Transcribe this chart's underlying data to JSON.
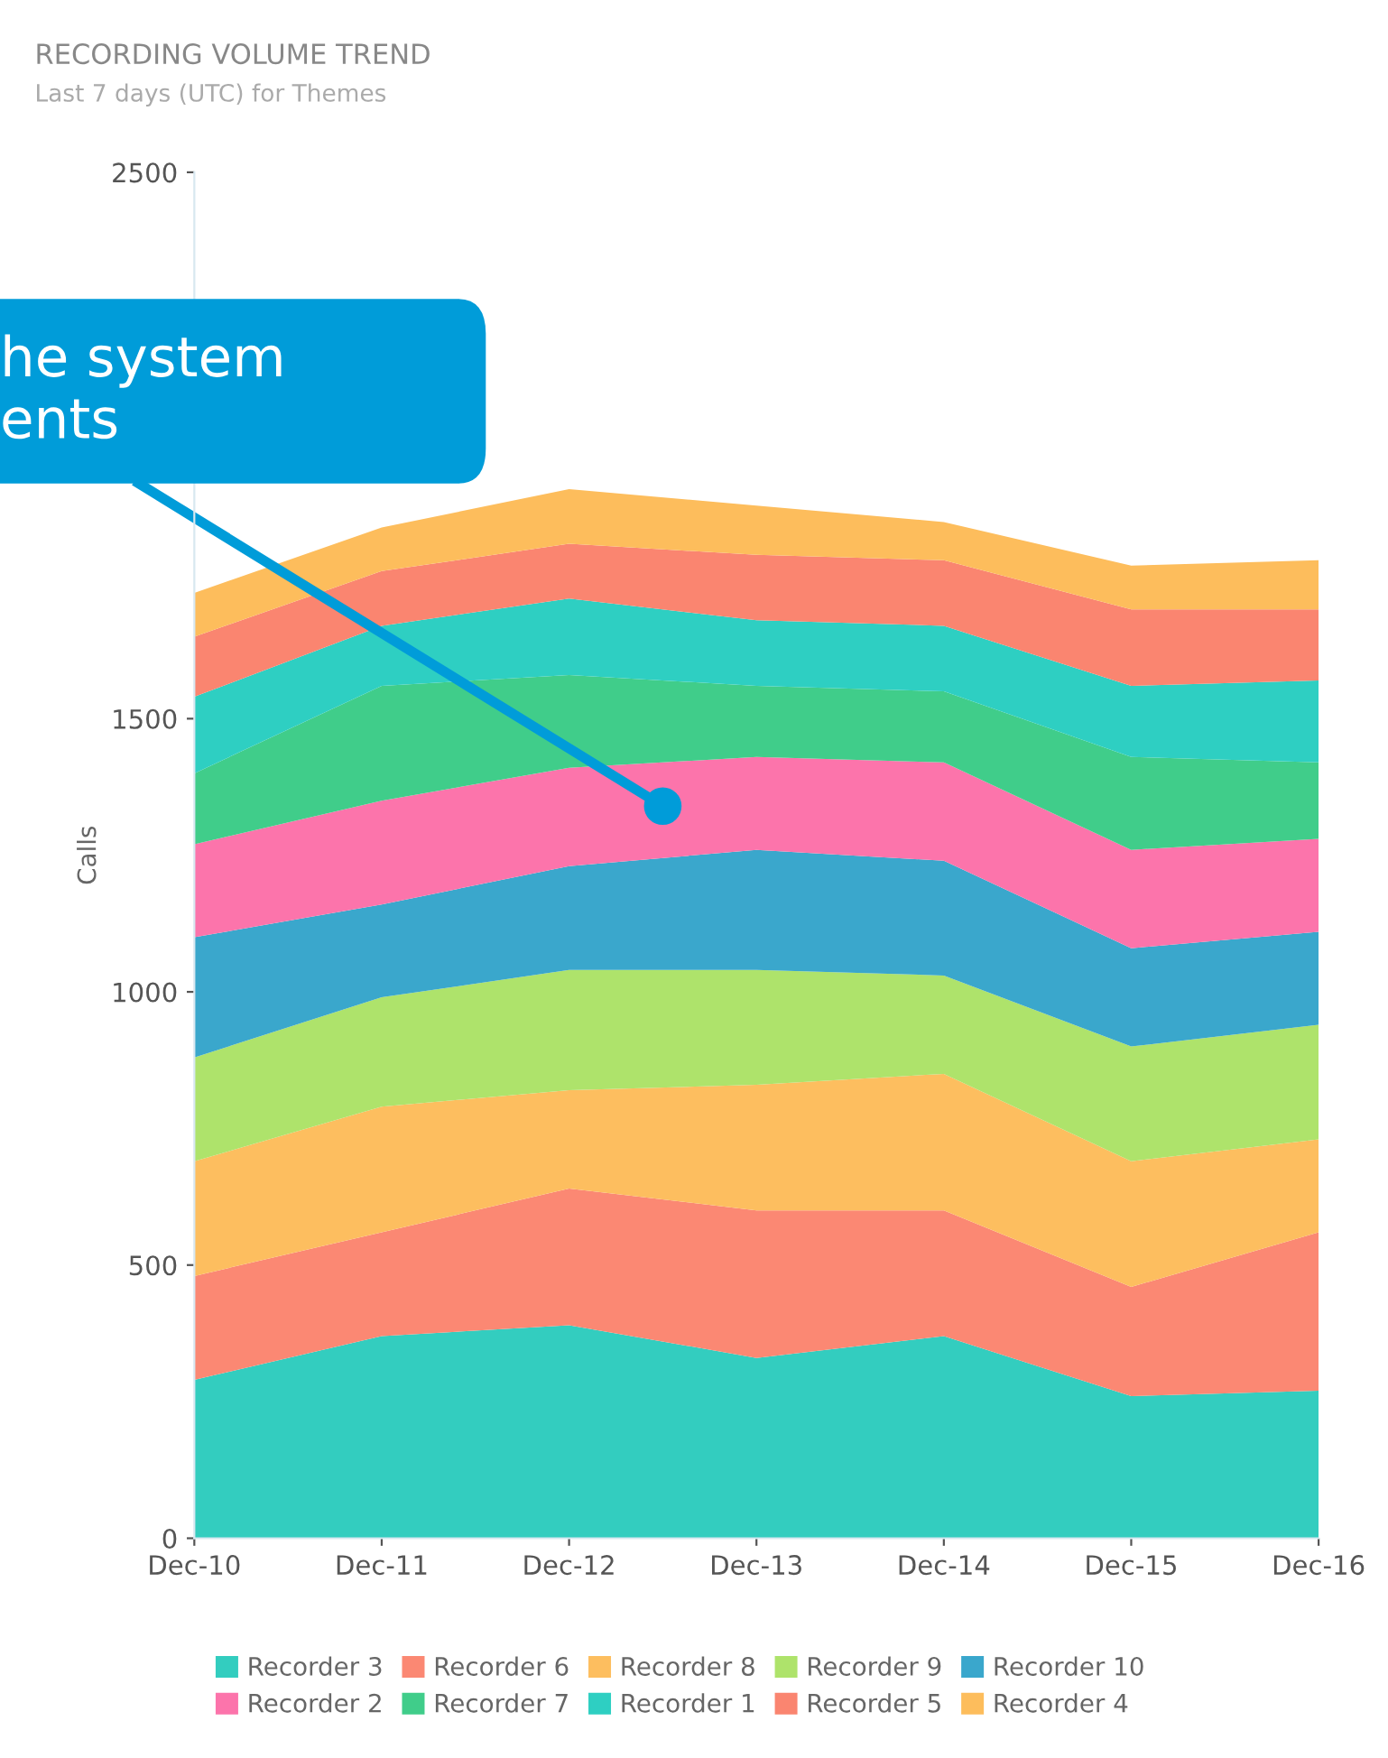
{
  "chart_data": {
    "type": "area",
    "stacked": true,
    "title": "RECORDING VOLUME TREND",
    "subtitle": "Last 7 days (UTC) for Themes",
    "ylabel": "Calls",
    "categories": [
      "Dec-10",
      "Dec-11",
      "Dec-12",
      "Dec-13",
      "Dec-14",
      "Dec-15",
      "Dec-16"
    ],
    "series": [
      {
        "name": "Recorder 3",
        "color": "#33cdbf",
        "values": [
          290,
          370,
          390,
          330,
          370,
          260,
          270
        ]
      },
      {
        "name": "Recorder 6",
        "color": "#fb8873",
        "values": [
          190,
          190,
          250,
          270,
          230,
          200,
          290
        ]
      },
      {
        "name": "Recorder 8",
        "color": "#fdbe5f",
        "values": [
          210,
          230,
          180,
          230,
          250,
          230,
          170
        ]
      },
      {
        "name": "Recorder 9",
        "color": "#aee36b",
        "values": [
          190,
          200,
          220,
          210,
          180,
          210,
          210
        ]
      },
      {
        "name": "Recorder 10",
        "color": "#3aa7cc",
        "values": [
          220,
          170,
          190,
          220,
          210,
          180,
          170
        ]
      },
      {
        "name": "Recorder 2",
        "color": "#fc74ab",
        "values": [
          170,
          190,
          180,
          170,
          180,
          180,
          170
        ]
      },
      {
        "name": "Recorder 7",
        "color": "#40cd8a",
        "values": [
          130,
          210,
          170,
          130,
          130,
          170,
          140
        ]
      },
      {
        "name": "Recorder 1",
        "color": "#2ecfc2",
        "values": [
          140,
          110,
          140,
          120,
          120,
          130,
          150
        ]
      },
      {
        "name": "Recorder 5",
        "color": "#fa8570",
        "values": [
          110,
          100,
          100,
          120,
          120,
          140,
          130
        ]
      },
      {
        "name": "Recorder 4",
        "color": "#fdbd5c",
        "values": [
          80,
          80,
          100,
          90,
          70,
          80,
          90
        ]
      }
    ],
    "ylim": [
      0,
      2500
    ],
    "yticks": [
      0,
      500,
      1000,
      1500,
      2500
    ],
    "grid": false,
    "legend": "bottom",
    "annotations": [
      "he system\nents"
    ]
  }
}
